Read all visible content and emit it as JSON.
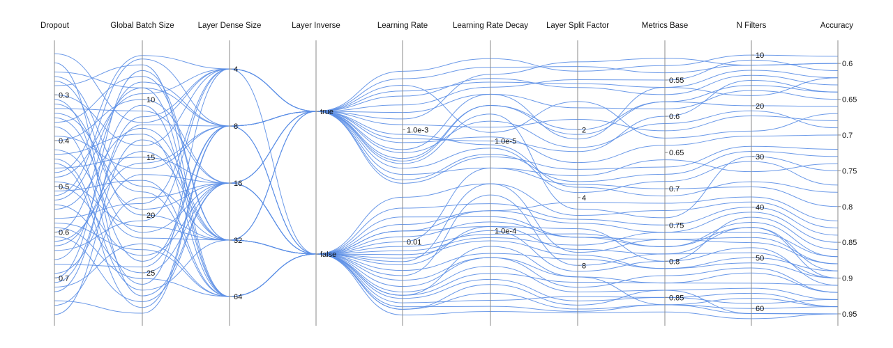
{
  "chart_data": {
    "type": "parallel_coordinates",
    "line_color": "#5b8ee6",
    "axis_color": "#8a8a8a",
    "axes": [
      {
        "key": "dropout",
        "label": "Dropout",
        "scale": "linear",
        "domain": [
          0.2053,
          0.7923
        ],
        "ticks": [
          {
            "v": 0.3,
            "t": "0.3"
          },
          {
            "v": 0.4,
            "t": "0.4"
          },
          {
            "v": 0.5,
            "t": "0.5"
          },
          {
            "v": 0.6,
            "t": "0.6"
          },
          {
            "v": 0.7,
            "t": "0.7"
          }
        ]
      },
      {
        "key": "batch",
        "label": "Global Batch Size",
        "scale": "linear",
        "domain": [
          5.85,
          29.1
        ],
        "ticks": [
          {
            "v": 10,
            "t": "10"
          },
          {
            "v": 15,
            "t": "15"
          },
          {
            "v": 20,
            "t": "20"
          },
          {
            "v": 25,
            "t": "25"
          }
        ]
      },
      {
        "key": "dense",
        "label": "Layer Dense Size",
        "scale": "category",
        "categories": [
          {
            "v": 4,
            "t": "4"
          },
          {
            "v": 8,
            "t": "8"
          },
          {
            "v": 16,
            "t": "16"
          },
          {
            "v": 32,
            "t": "32"
          },
          {
            "v": 64,
            "t": "64"
          }
        ]
      },
      {
        "key": "inverse",
        "label": "Layer Inverse",
        "scale": "category",
        "categories": [
          {
            "v": "true",
            "t": "true"
          },
          {
            "v": "false",
            "t": "false"
          }
        ]
      },
      {
        "key": "lr",
        "label": "Learning Rate",
        "scale": "log",
        "domain": [
          0.0002,
          0.05
        ],
        "ticks": [
          {
            "v": 0.001,
            "t": "1.0e-3"
          },
          {
            "v": 0.01,
            "t": "0.01"
          }
        ]
      },
      {
        "key": "lrd",
        "label": "Learning Rate Decay",
        "scale": "log",
        "domain": [
          1e-06,
          0.001
        ],
        "ticks": [
          {
            "v": 1e-05,
            "t": "1.0e-5"
          },
          {
            "v": 0.0001,
            "t": "1.0e-4"
          }
        ]
      },
      {
        "key": "split",
        "label": "Layer Split Factor",
        "scale": "log",
        "domain": [
          0.9,
          14
        ],
        "ticks": [
          {
            "v": 2,
            "t": "2"
          },
          {
            "v": 4,
            "t": "4"
          },
          {
            "v": 8,
            "t": "8"
          }
        ]
      },
      {
        "key": "metrics",
        "label": "Metrics Base",
        "scale": "linear",
        "domain": [
          0.5106,
          0.8813
        ],
        "ticks": [
          {
            "v": 0.55,
            "t": "0.55"
          },
          {
            "v": 0.6,
            "t": "0.6"
          },
          {
            "v": 0.65,
            "t": "0.65"
          },
          {
            "v": 0.7,
            "t": "0.7"
          },
          {
            "v": 0.75,
            "t": "0.75"
          },
          {
            "v": 0.8,
            "t": "0.8"
          },
          {
            "v": 0.85,
            "t": "0.85"
          }
        ]
      },
      {
        "key": "filters",
        "label": "N Filters",
        "scale": "linear",
        "domain": [
          9.3,
          62.3
        ],
        "ticks": [
          {
            "v": 10,
            "t": "10"
          },
          {
            "v": 20,
            "t": "20"
          },
          {
            "v": 30,
            "t": "30"
          },
          {
            "v": 40,
            "t": "40"
          },
          {
            "v": 50,
            "t": "50"
          },
          {
            "v": 60,
            "t": "60"
          }
        ]
      },
      {
        "key": "acc",
        "label": "Accuracy",
        "scale": "linear",
        "domain": [
          0.5833,
          0.9588
        ],
        "ticks": [
          {
            "v": 0.6,
            "t": "0.6"
          },
          {
            "v": 0.65,
            "t": "0.65"
          },
          {
            "v": 0.7,
            "t": "0.7"
          },
          {
            "v": 0.75,
            "t": "0.75"
          },
          {
            "v": 0.8,
            "t": "0.8"
          },
          {
            "v": 0.85,
            "t": "0.85"
          },
          {
            "v": 0.9,
            "t": "0.9"
          },
          {
            "v": 0.95,
            "t": "0.95"
          }
        ]
      }
    ],
    "rows": [
      [
        0.21,
        12,
        4,
        "true",
        0.0008,
        1.8e-06,
        1.0,
        0.52,
        12,
        0.6
      ],
      [
        0.23,
        27,
        16,
        "false",
        0.03,
        0.00015,
        9,
        0.86,
        58,
        0.94
      ],
      [
        0.25,
        9,
        8,
        "true",
        0.0015,
        3e-06,
        2.2,
        0.56,
        18,
        0.62
      ],
      [
        0.27,
        20,
        32,
        "false",
        0.006,
        7e-05,
        6,
        0.78,
        44,
        0.9
      ],
      [
        0.28,
        7,
        64,
        "false",
        0.04,
        0.0004,
        12,
        0.84,
        61,
        0.95
      ],
      [
        0.3,
        14,
        4,
        "true",
        0.0004,
        8e-06,
        1.5,
        0.63,
        25,
        0.67
      ],
      [
        0.31,
        24,
        8,
        "false",
        0.01,
        2e-05,
        3.5,
        0.7,
        36,
        0.8
      ],
      [
        0.33,
        11,
        16,
        "true",
        0.002,
        5e-06,
        4.5,
        0.74,
        30,
        0.75
      ],
      [
        0.34,
        18,
        64,
        "false",
        0.025,
        0.0002,
        10,
        0.82,
        52,
        0.92
      ],
      [
        0.36,
        8,
        32,
        "true",
        0.0012,
        1e-05,
        2.5,
        0.6,
        15,
        0.64
      ],
      [
        0.37,
        26,
        4,
        "false",
        0.015,
        3e-05,
        7,
        0.77,
        47,
        0.88
      ],
      [
        0.39,
        16,
        8,
        "true",
        0.0006,
        2.5e-06,
        1.2,
        0.55,
        11,
        0.61
      ],
      [
        0.4,
        10,
        16,
        "false",
        0.008,
        9e-05,
        5.5,
        0.8,
        42,
        0.86
      ],
      [
        0.42,
        22,
        32,
        "true",
        0.003,
        1.5e-05,
        3,
        0.67,
        28,
        0.72
      ],
      [
        0.43,
        13,
        64,
        "false",
        0.035,
        0.0006,
        11,
        0.85,
        59,
        0.93
      ],
      [
        0.45,
        28,
        8,
        "true",
        0.0003,
        1.2e-06,
        1.1,
        0.53,
        10,
        0.59
      ],
      [
        0.46,
        15,
        16,
        "false",
        0.02,
        4e-05,
        8,
        0.79,
        49,
        0.9
      ],
      [
        0.48,
        9.5,
        4,
        "true",
        0.0018,
        4e-06,
        2,
        0.58,
        20,
        0.66
      ],
      [
        0.49,
        21,
        32,
        "false",
        0.012,
        0.00012,
        6.5,
        0.76,
        45,
        0.87
      ],
      [
        0.51,
        17,
        64,
        "false",
        0.045,
        0.0008,
        13,
        0.87,
        62,
        0.95
      ],
      [
        0.52,
        6.5,
        8,
        "true",
        0.0009,
        7e-06,
        1.8,
        0.62,
        22,
        0.68
      ],
      [
        0.54,
        25,
        16,
        "false",
        0.007,
        6e-05,
        4.2,
        0.72,
        38,
        0.82
      ],
      [
        0.55,
        12.5,
        32,
        "true",
        0.0025,
        2e-05,
        3.2,
        0.66,
        33,
        0.74
      ],
      [
        0.57,
        19,
        4,
        "true",
        0.0005,
        2e-06,
        1.3,
        0.57,
        14,
        0.63
      ],
      [
        0.58,
        23,
        64,
        "false",
        0.03,
        0.0003,
        9.5,
        0.83,
        55,
        0.91
      ],
      [
        0.6,
        8.5,
        8,
        "false",
        0.005,
        5e-05,
        5,
        0.75,
        40,
        0.84
      ],
      [
        0.61,
        27.5,
        16,
        "true",
        0.0013,
        9e-06,
        2.8,
        0.64,
        26,
        0.7
      ],
      [
        0.63,
        14.5,
        32,
        "false",
        0.018,
        0.00018,
        7.5,
        0.81,
        50,
        0.89
      ],
      [
        0.64,
        20.5,
        4,
        "true",
        0.00035,
        1.5e-06,
        1.05,
        0.54,
        12,
        0.6
      ],
      [
        0.66,
        10.5,
        64,
        "false",
        0.04,
        0.0005,
        12.5,
        0.86,
        60,
        0.94
      ],
      [
        0.67,
        24.5,
        8,
        "true",
        0.0022,
        1.2e-05,
        3.8,
        0.69,
        31,
        0.77
      ],
      [
        0.69,
        16.5,
        16,
        "false",
        0.009,
        8e-05,
        6,
        0.77,
        46,
        0.88
      ],
      [
        0.7,
        7.5,
        32,
        "false",
        0.014,
        0.0001,
        8.5,
        0.8,
        48,
        0.91
      ],
      [
        0.72,
        22.5,
        64,
        "false",
        0.028,
        0.00025,
        10.5,
        0.84,
        56,
        0.93
      ],
      [
        0.73,
        11.5,
        4,
        "true",
        0.0007,
        3e-06,
        1.6,
        0.59,
        17,
        0.65
      ],
      [
        0.75,
        28.5,
        8,
        "false",
        0.011,
        0.00011,
        5.8,
        0.78,
        43,
        0.87
      ],
      [
        0.76,
        18.5,
        16,
        "true",
        0.0016,
        6e-06,
        2.4,
        0.61,
        21,
        0.69
      ],
      [
        0.78,
        13.5,
        32,
        "false",
        0.022,
        0.0002,
        9,
        0.83,
        53,
        0.92
      ],
      [
        0.32,
        19.5,
        16,
        "true",
        0.0011,
        1.1e-05,
        3.6,
        0.71,
        35,
        0.78
      ],
      [
        0.44,
        26.5,
        32,
        "false",
        0.004,
        3e-05,
        4.8,
        0.73,
        39,
        0.83
      ],
      [
        0.53,
        9,
        64,
        "false",
        0.032,
        0.00035,
        11.5,
        0.85,
        57,
        0.94
      ],
      [
        0.62,
        15.5,
        8,
        "true",
        0.0019,
        4e-06,
        2.1,
        0.58,
        16,
        0.64
      ],
      [
        0.35,
        21.5,
        16,
        "false",
        0.016,
        9e-05,
        6.8,
        0.79,
        44,
        0.89
      ],
      [
        0.47,
        6.2,
        4,
        "true",
        0.00045,
        2.2e-06,
        1.25,
        0.56,
        13,
        0.62
      ],
      [
        0.59,
        25.5,
        64,
        "false",
        0.038,
        0.0007,
        12.8,
        0.86,
        61,
        0.95
      ],
      [
        0.26,
        17.5,
        32,
        "false",
        0.008,
        6e-05,
        5.2,
        0.76,
        41,
        0.85
      ],
      [
        0.71,
        12.2,
        8,
        "true",
        0.0028,
        1.4e-05,
        3.4,
        0.68,
        29,
        0.73
      ],
      [
        0.5,
        23.5,
        16,
        "false",
        0.013,
        0.00013,
        7.2,
        0.81,
        51,
        0.9
      ]
    ]
  }
}
